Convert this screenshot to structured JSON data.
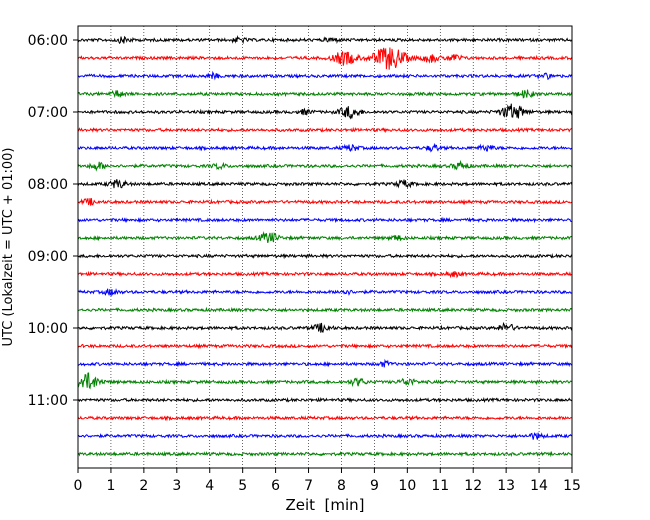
{
  "chart_data": {
    "type": "line",
    "chart_kind": "seismogram-helicorder",
    "xlabel": "Zeit  [min]",
    "ylabel": "UTC (Lokalzeit = UTC + 01:00)",
    "xlim": [
      0,
      15
    ],
    "x_ticks": [
      "0",
      "1",
      "2",
      "3",
      "4",
      "5",
      "6",
      "7",
      "8",
      "9",
      "10",
      "11",
      "12",
      "13",
      "14",
      "15"
    ],
    "grid": "vertical dotted lines at each minute",
    "y_tick_labels": [
      "06:00",
      "07:00",
      "08:00",
      "09:00",
      "10:00",
      "11:00"
    ],
    "trace_colors": [
      "#000000",
      "#ff0000",
      "#0000ff",
      "#008000"
    ],
    "trace_start_times": [
      "06:00",
      "06:15",
      "06:30",
      "06:45",
      "07:00",
      "07:15",
      "07:30",
      "07:45",
      "08:00",
      "08:15",
      "08:30",
      "08:45",
      "09:00",
      "09:15",
      "09:30",
      "09:45",
      "10:00",
      "10:15",
      "10:30",
      "10:45",
      "11:00",
      "11:15",
      "11:30",
      "11:45"
    ],
    "events": [
      {
        "trace": 0,
        "minute": 1.4,
        "amp": 0.25
      },
      {
        "trace": 0,
        "minute": 4.9,
        "amp": 0.2
      },
      {
        "trace": 0,
        "minute": 7.7,
        "amp": 0.2
      },
      {
        "trace": 1,
        "minute": 8.1,
        "amp": 0.6
      },
      {
        "trace": 1,
        "minute": 9.45,
        "amp": 1.0
      },
      {
        "trace": 1,
        "minute": 10.7,
        "amp": 0.35
      },
      {
        "trace": 1,
        "minute": 11.4,
        "amp": 0.3
      },
      {
        "trace": 2,
        "minute": 4.1,
        "amp": 0.2
      },
      {
        "trace": 2,
        "minute": 14.2,
        "amp": 0.2
      },
      {
        "trace": 3,
        "minute": 1.2,
        "amp": 0.25
      },
      {
        "trace": 3,
        "minute": 13.6,
        "amp": 0.3
      },
      {
        "trace": 4,
        "minute": 8.25,
        "amp": 0.5
      },
      {
        "trace": 4,
        "minute": 13.2,
        "amp": 0.65
      },
      {
        "trace": 4,
        "minute": 6.9,
        "amp": 0.2
      },
      {
        "trace": 6,
        "minute": 8.3,
        "amp": 0.25
      },
      {
        "trace": 6,
        "minute": 10.8,
        "amp": 0.25
      },
      {
        "trace": 6,
        "minute": 12.4,
        "amp": 0.25
      },
      {
        "trace": 7,
        "minute": 0.6,
        "amp": 0.3
      },
      {
        "trace": 7,
        "minute": 4.3,
        "amp": 0.2
      },
      {
        "trace": 7,
        "minute": 11.6,
        "amp": 0.3
      },
      {
        "trace": 8,
        "minute": 1.2,
        "amp": 0.35
      },
      {
        "trace": 8,
        "minute": 9.9,
        "amp": 0.3
      },
      {
        "trace": 9,
        "minute": 0.35,
        "amp": 0.25
      },
      {
        "trace": 11,
        "minute": 5.8,
        "amp": 0.45
      },
      {
        "trace": 11,
        "minute": 9.7,
        "amp": 0.2
      },
      {
        "trace": 13,
        "minute": 11.4,
        "amp": 0.2
      },
      {
        "trace": 14,
        "minute": 1.0,
        "amp": 0.25
      },
      {
        "trace": 14,
        "minute": 8.1,
        "amp": 0.2
      },
      {
        "trace": 16,
        "minute": 7.4,
        "amp": 0.35
      },
      {
        "trace": 16,
        "minute": 13.0,
        "amp": 0.35
      },
      {
        "trace": 18,
        "minute": 9.3,
        "amp": 0.2
      },
      {
        "trace": 19,
        "minute": 0.25,
        "amp": 0.75
      },
      {
        "trace": 19,
        "minute": 8.5,
        "amp": 0.3
      },
      {
        "trace": 19,
        "minute": 10.0,
        "amp": 0.3
      },
      {
        "trace": 22,
        "minute": 13.9,
        "amp": 0.25
      }
    ]
  }
}
